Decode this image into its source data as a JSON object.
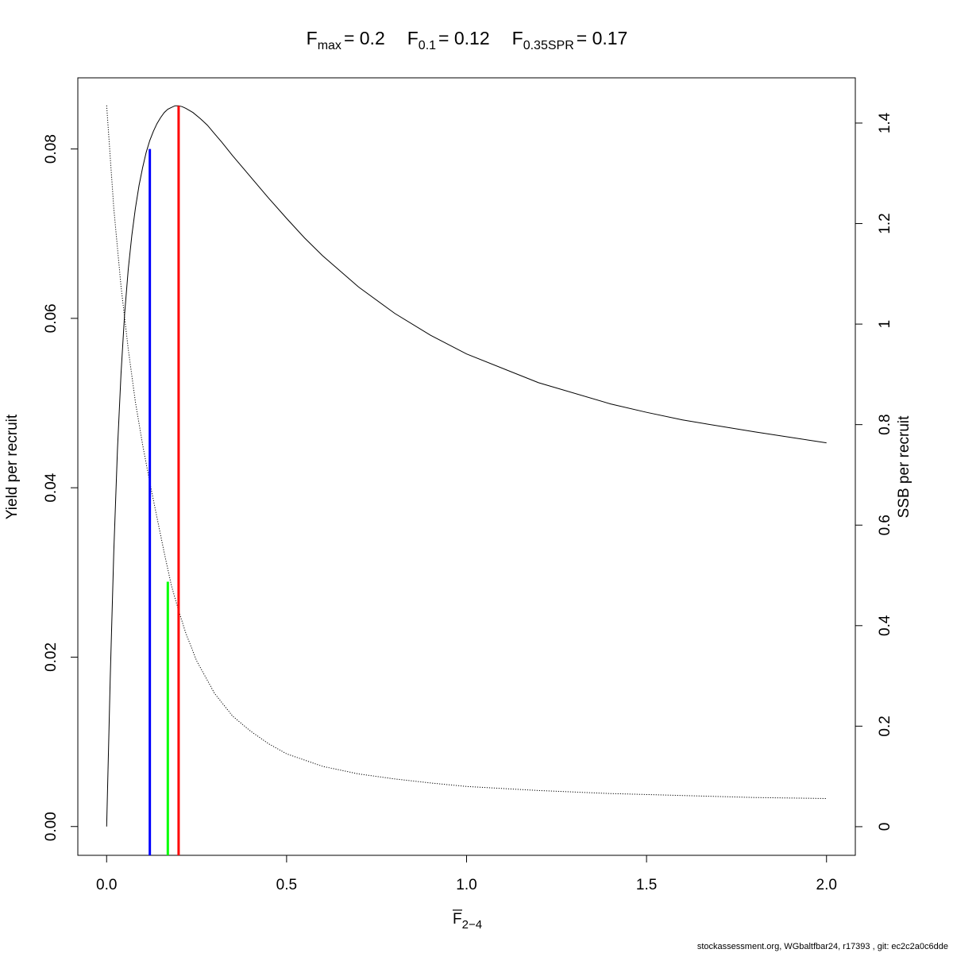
{
  "chart_data": {
    "type": "line",
    "title": {
      "fmax_name": "F",
      "fmax_sub": "max",
      "fmax_value": "= 0.2",
      "f01_name": "F",
      "f01_sub": "0.1",
      "f01_value": "= 0.12",
      "fspr_name": "F",
      "fspr_sub": "0.35SPR",
      "fspr_value": "= 0.17"
    },
    "xlabel": {
      "base": "F",
      "sub": "2−4"
    },
    "ylabel_left": "Yield per recruit",
    "ylabel_right": "SSB per recruit",
    "xlim": [
      -0.08,
      2.08
    ],
    "ylim_left": [
      -0.0034,
      0.0884
    ],
    "ylim_right": [
      -0.057,
      1.49
    ],
    "x_ticks": [
      {
        "value": 0.0,
        "label": "0.0"
      },
      {
        "value": 0.5,
        "label": "0.5"
      },
      {
        "value": 1.0,
        "label": "1.0"
      },
      {
        "value": 1.5,
        "label": "1.5"
      },
      {
        "value": 2.0,
        "label": "2.0"
      }
    ],
    "y_left_ticks": [
      {
        "value": 0.0,
        "label": "0.00"
      },
      {
        "value": 0.02,
        "label": "0.02"
      },
      {
        "value": 0.04,
        "label": "0.04"
      },
      {
        "value": 0.06,
        "label": "0.06"
      },
      {
        "value": 0.08,
        "label": "0.08"
      }
    ],
    "y_right_ticks": [
      {
        "value": 0.0,
        "label": "0"
      },
      {
        "value": 0.2,
        "label": "0.2"
      },
      {
        "value": 0.4,
        "label": "0.4"
      },
      {
        "value": 0.6,
        "label": "0.6"
      },
      {
        "value": 0.8,
        "label": "0.8"
      },
      {
        "value": 1.0,
        "label": "1"
      },
      {
        "value": 1.2,
        "label": "1.2"
      },
      {
        "value": 1.4,
        "label": "1.4"
      }
    ],
    "series": [
      {
        "axis": "left",
        "style": "solid",
        "color": "#000000",
        "x": [
          0.0,
          0.01,
          0.02,
          0.03,
          0.04,
          0.05,
          0.06,
          0.07,
          0.08,
          0.09,
          0.1,
          0.11,
          0.12,
          0.13,
          0.14,
          0.15,
          0.16,
          0.17,
          0.18,
          0.19,
          0.2,
          0.21,
          0.22,
          0.24,
          0.26,
          0.28,
          0.3,
          0.32,
          0.35,
          0.38,
          0.4,
          0.45,
          0.5,
          0.55,
          0.6,
          0.7,
          0.8,
          0.9,
          1.0,
          1.2,
          1.4,
          1.5,
          1.6,
          1.8,
          2.0
        ],
        "y": [
          0.0,
          0.0175,
          0.0325,
          0.0445,
          0.0535,
          0.0605,
          0.0658,
          0.0698,
          0.073,
          0.0757,
          0.0778,
          0.0796,
          0.081,
          0.0821,
          0.083,
          0.0837,
          0.0843,
          0.0847,
          0.0849,
          0.0851,
          0.0851,
          0.085,
          0.0848,
          0.0843,
          0.0836,
          0.0828,
          0.0818,
          0.0808,
          0.0792,
          0.0777,
          0.0767,
          0.0742,
          0.0718,
          0.0695,
          0.0674,
          0.0637,
          0.0606,
          0.058,
          0.0558,
          0.0524,
          0.0499,
          0.0489,
          0.048,
          0.0466,
          0.0453
        ]
      },
      {
        "axis": "right",
        "style": "dotted",
        "color": "#000000",
        "x": [
          0.0,
          0.02,
          0.04,
          0.06,
          0.08,
          0.1,
          0.12,
          0.14,
          0.16,
          0.18,
          0.2,
          0.22,
          0.25,
          0.3,
          0.35,
          0.4,
          0.45,
          0.5,
          0.6,
          0.7,
          0.8,
          0.9,
          1.0,
          1.2,
          1.4,
          1.6,
          1.8,
          2.0
        ],
        "y": [
          1.435,
          1.23,
          1.075,
          0.95,
          0.845,
          0.76,
          0.685,
          0.615,
          0.545,
          0.48,
          0.43,
          0.385,
          0.33,
          0.265,
          0.22,
          0.19,
          0.165,
          0.145,
          0.12,
          0.105,
          0.095,
          0.087,
          0.08,
          0.072,
          0.066,
          0.062,
          0.058,
          0.056
        ]
      }
    ],
    "reference_lines": [
      {
        "x": 0.12,
        "y_left": 0.08,
        "color": "#0000ff"
      },
      {
        "x": 0.17,
        "y_left": 0.0289,
        "color": "#00ff00"
      },
      {
        "x": 0.2,
        "y_left": 0.0851,
        "color": "#ff0000"
      }
    ],
    "grid": false,
    "legend": "none"
  },
  "footer": "stockassessment.org, WGbaltfbar24, r17393 , git: ec2c2a0c6dde"
}
